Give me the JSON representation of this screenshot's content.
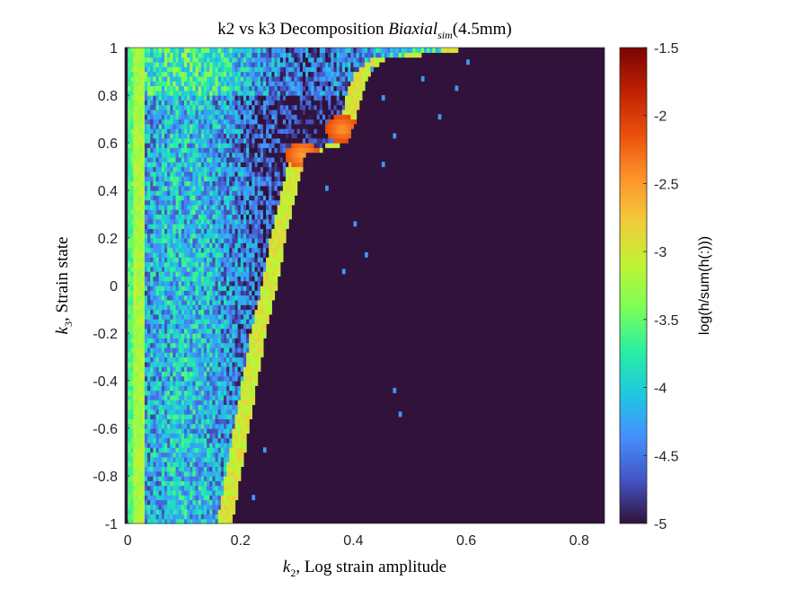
{
  "chart_data": {
    "type": "heatmap",
    "title_prefix": "k2 vs k3 Decomposition ",
    "title_italic": "Biaxial",
    "title_subscript": "sim",
    "title_suffix": "(4.5mm)",
    "xlabel_sym": "k",
    "xlabel_sub": "2",
    "xlabel_text": ", Log strain amplitude",
    "ylabel_sym": "k",
    "ylabel_sub": "3",
    "ylabel_text": ", Strain state",
    "colorbar_label": "log(h/sum(h(:)))",
    "xlim": [
      -0.005,
      0.845
    ],
    "ylim": [
      -1,
      1
    ],
    "clim": [
      -5,
      -1.5
    ],
    "xticks": [
      0,
      0.2,
      0.4,
      0.6,
      0.8
    ],
    "yticks": [
      -1,
      -0.8,
      -0.6,
      -0.4,
      -0.2,
      0,
      0.2,
      0.4,
      0.6,
      0.8,
      1
    ],
    "cbar_ticks": [
      -5,
      -4.5,
      -4,
      -3.5,
      -3,
      -2.5,
      -2,
      -1.5
    ],
    "background_value": -5,
    "colormap": [
      "#30123b",
      "#4454c4",
      "#4490fe",
      "#1fc8de",
      "#29efa2",
      "#7dff56",
      "#c1f334",
      "#f1ca3a",
      "#fe922a",
      "#ea4f0d",
      "#be2102",
      "#7a0403"
    ],
    "features": {
      "ridge_k2_at_k3": [
        [
          -1,
          0.02
        ],
        [
          -0.6,
          0.02
        ],
        [
          0,
          0.015
        ],
        [
          0.6,
          0.01
        ],
        [
          1,
          0.01
        ]
      ],
      "ridge_value": -3.2,
      "edge_band_k2_at_k3": [
        [
          -1,
          0.17
        ],
        [
          -0.6,
          0.2
        ],
        [
          -0.2,
          0.23
        ],
        [
          0,
          0.25
        ],
        [
          0.2,
          0.265
        ],
        [
          0.4,
          0.285
        ],
        [
          0.5,
          0.295
        ],
        [
          0.55,
          0.3
        ],
        [
          0.6,
          0.375
        ],
        [
          0.7,
          0.39
        ],
        [
          0.8,
          0.4
        ],
        [
          0.9,
          0.415
        ],
        [
          0.95,
          0.44
        ],
        [
          1,
          0.6
        ]
      ],
      "edge_band_value": -3.0,
      "hotspots": [
        {
          "k2": 0.31,
          "k3": 0.55,
          "value": -2.55
        },
        {
          "k2": 0.38,
          "k3": 0.66,
          "value": -2.5
        }
      ],
      "interior_range": [
        -5,
        -3.7
      ]
    }
  }
}
